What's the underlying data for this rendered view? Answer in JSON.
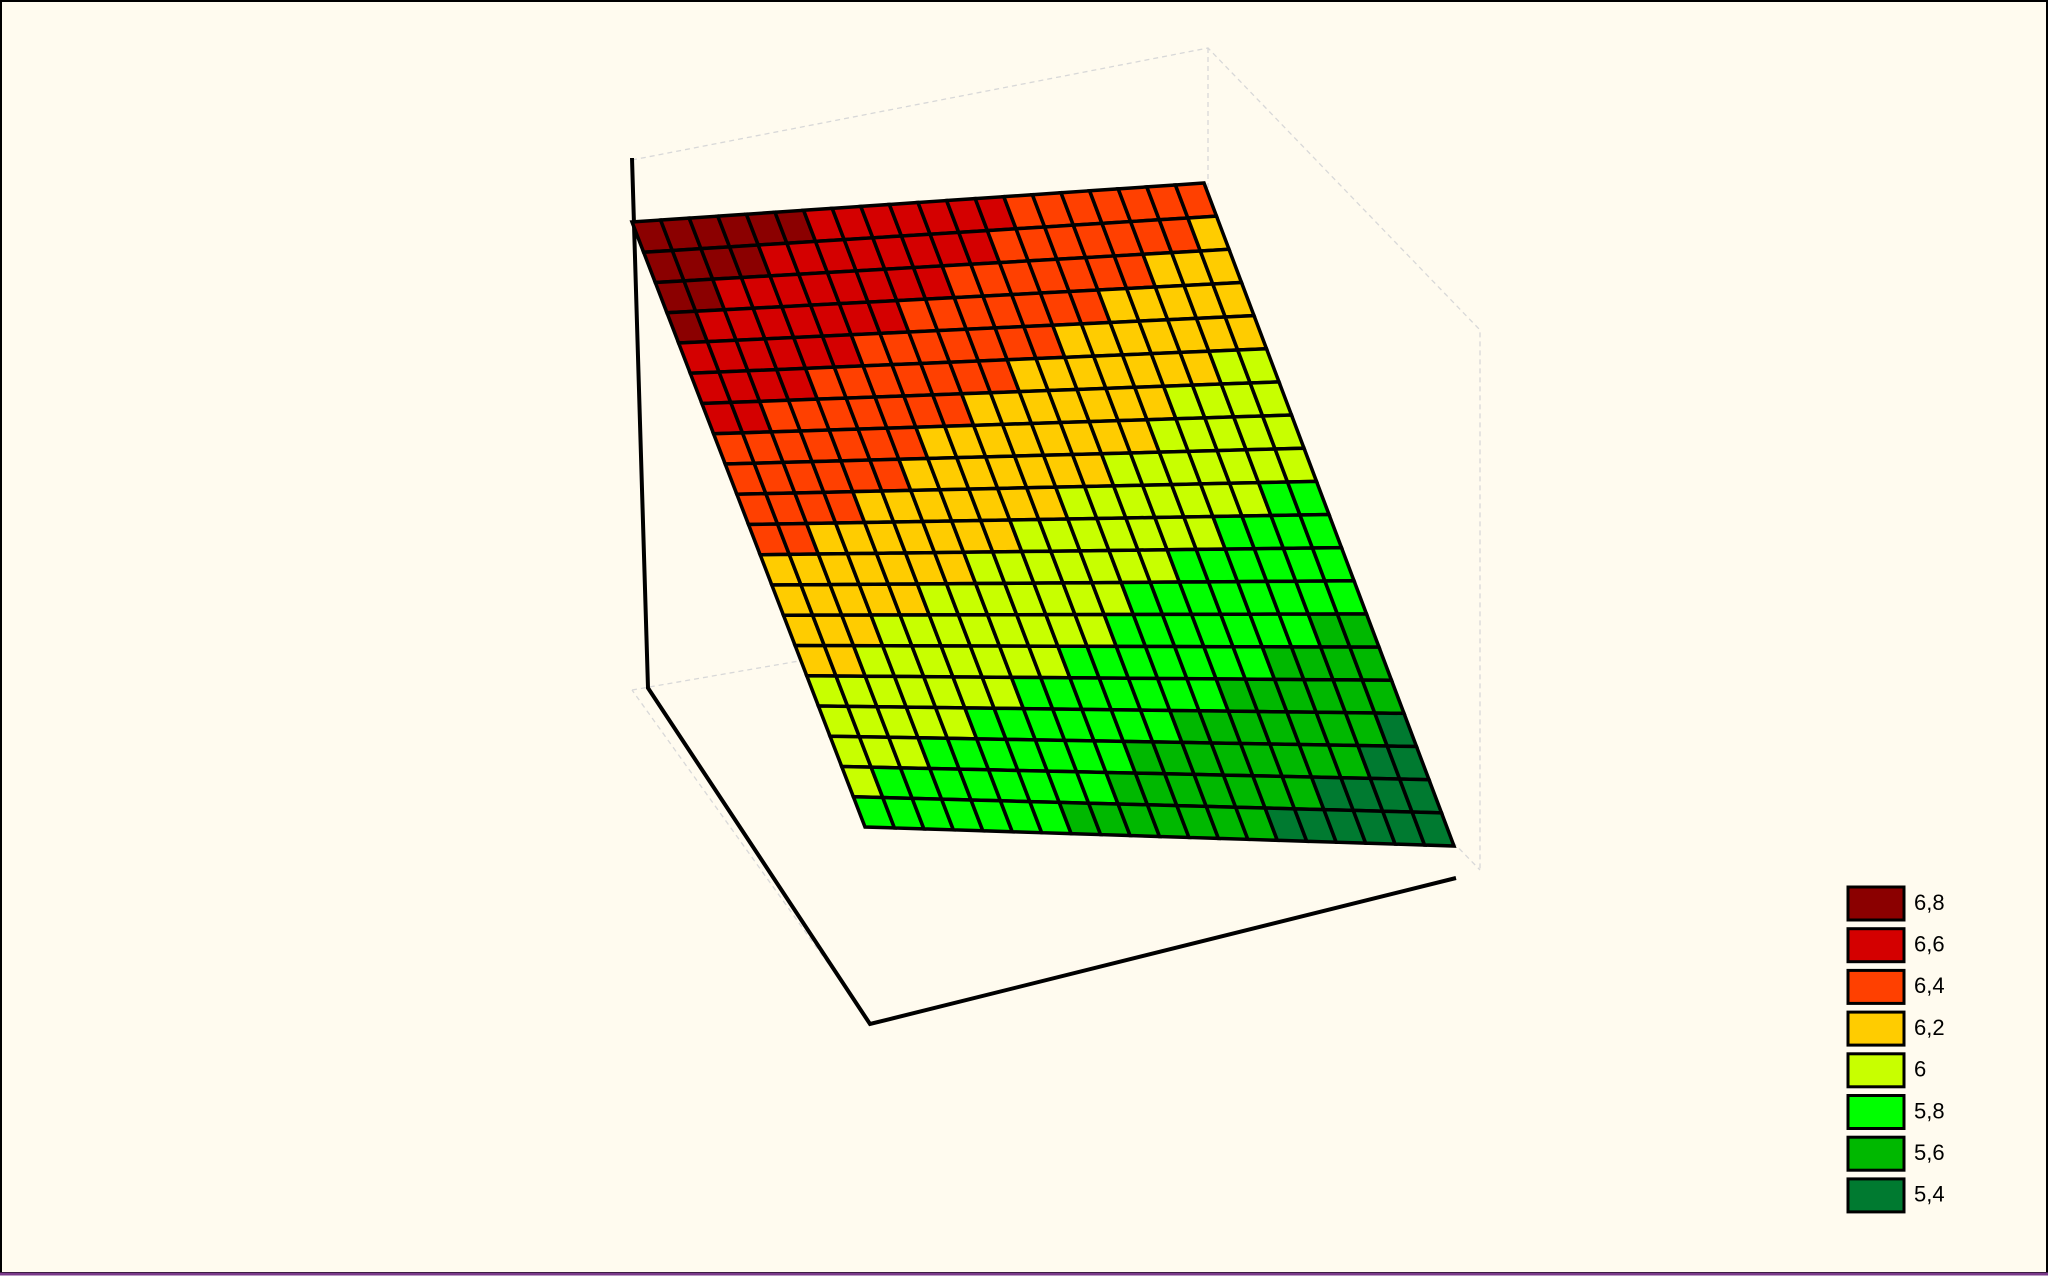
{
  "chart_data": {
    "type": "surface",
    "levels": [
      {
        "value": 6.8,
        "label": "6,8"
      },
      {
        "value": 6.6,
        "label": "6,6"
      },
      {
        "value": 6.4,
        "label": "6,4"
      },
      {
        "value": 6.2,
        "label": "6,2"
      },
      {
        "value": 6,
        "label": "6"
      },
      {
        "value": 5.8,
        "label": "5,8"
      },
      {
        "value": 5.6,
        "label": "5,6"
      },
      {
        "value": 5.4,
        "label": "5,4"
      }
    ],
    "colors": [
      "#8b0000",
      "#d40000",
      "#ff4000",
      "#ffcc00",
      "#c8ff00",
      "#00ff00",
      "#00b800",
      "#007a30"
    ]
  }
}
